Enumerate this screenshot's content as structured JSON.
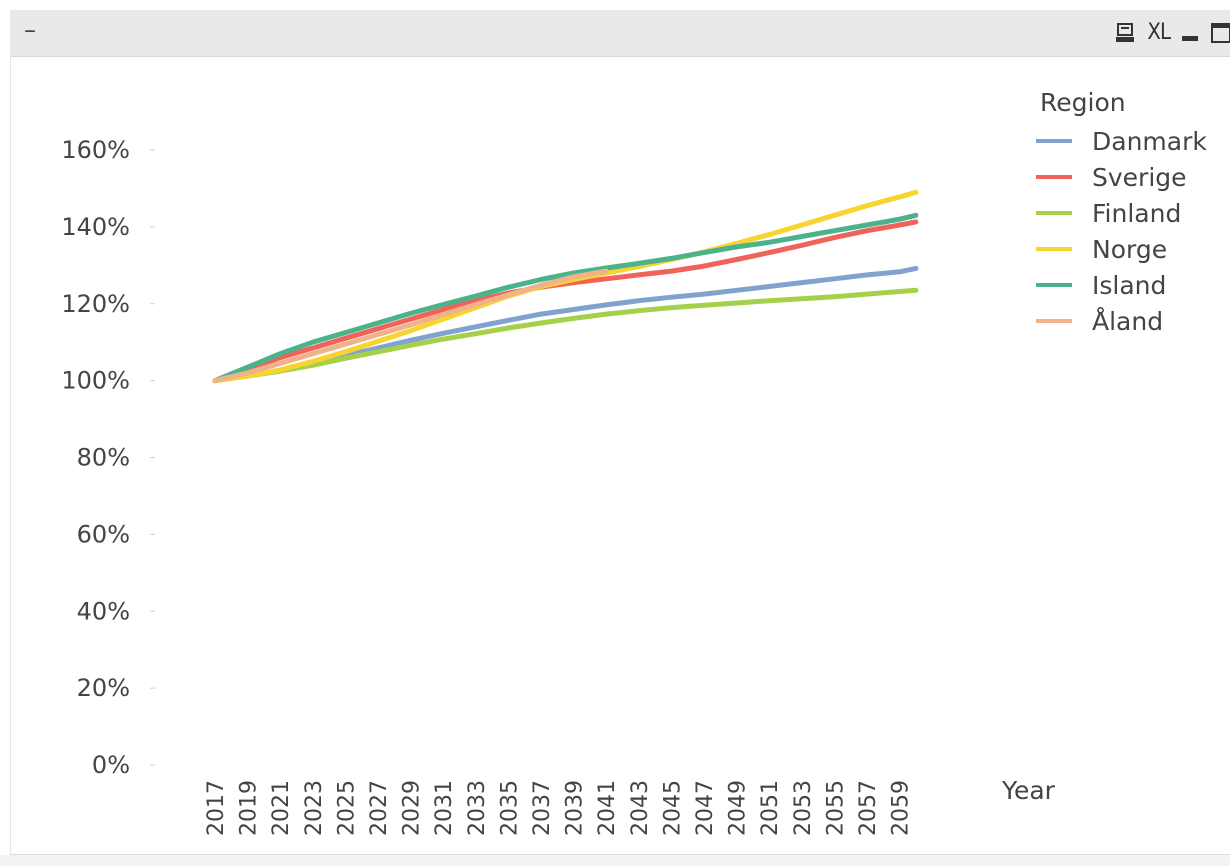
{
  "window": {
    "collapse_label": "–",
    "icons": [
      "print-icon",
      "excel-export-icon",
      "minimize-icon",
      "maximize-icon"
    ],
    "xl_label": "XL"
  },
  "legend": {
    "title": "Region"
  },
  "chart_data": {
    "type": "line",
    "title": "",
    "xlabel": "Year",
    "ylabel": "",
    "ylim": [
      0,
      1.6
    ],
    "yticks": [
      "0%",
      "20%",
      "40%",
      "60%",
      "80%",
      "100%",
      "120%",
      "140%",
      "160%"
    ],
    "x_tick_labels": [
      "2017",
      "2019",
      "2021",
      "2023",
      "2025",
      "2027",
      "2029",
      "2031",
      "2033",
      "2035",
      "2037",
      "2039",
      "2041",
      "2043",
      "2045",
      "2047",
      "2049",
      "2051",
      "2053",
      "2055",
      "2057",
      "2059"
    ],
    "x": [
      2017,
      2019,
      2021,
      2023,
      2025,
      2027,
      2029,
      2031,
      2033,
      2035,
      2037,
      2039,
      2041,
      2043,
      2045,
      2047,
      2049,
      2051,
      2053,
      2055,
      2057,
      2059,
      2060
    ],
    "grid": false,
    "legend_position": "top-right",
    "series": [
      {
        "name": "Danmark",
        "color": "#7fa3cc",
        "values": [
          1.0,
          1.012,
          1.025,
          1.045,
          1.065,
          1.085,
          1.105,
          1.123,
          1.14,
          1.157,
          1.173,
          1.185,
          1.197,
          1.208,
          1.217,
          1.225,
          1.235,
          1.245,
          1.255,
          1.265,
          1.275,
          1.283,
          1.292
        ]
      },
      {
        "name": "Sverige",
        "color": "#f0625a",
        "values": [
          1.0,
          1.03,
          1.06,
          1.085,
          1.11,
          1.135,
          1.16,
          1.185,
          1.208,
          1.228,
          1.243,
          1.255,
          1.265,
          1.275,
          1.285,
          1.298,
          1.315,
          1.333,
          1.352,
          1.372,
          1.39,
          1.405,
          1.413
        ]
      },
      {
        "name": "Finland",
        "color": "#a4d04a",
        "values": [
          1.0,
          1.012,
          1.025,
          1.04,
          1.058,
          1.075,
          1.092,
          1.108,
          1.122,
          1.137,
          1.15,
          1.162,
          1.173,
          1.182,
          1.19,
          1.196,
          1.202,
          1.208,
          1.213,
          1.218,
          1.225,
          1.232,
          1.235
        ]
      },
      {
        "name": "Norge",
        "color": "#f8d42e",
        "values": [
          1.0,
          1.012,
          1.028,
          1.05,
          1.075,
          1.102,
          1.13,
          1.16,
          1.19,
          1.22,
          1.245,
          1.263,
          1.28,
          1.297,
          1.315,
          1.335,
          1.357,
          1.38,
          1.405,
          1.43,
          1.455,
          1.478,
          1.49
        ]
      },
      {
        "name": "Island",
        "color": "#4bb38a",
        "values": [
          1.0,
          1.035,
          1.07,
          1.1,
          1.125,
          1.15,
          1.175,
          1.198,
          1.22,
          1.243,
          1.263,
          1.28,
          1.293,
          1.305,
          1.318,
          1.333,
          1.348,
          1.36,
          1.375,
          1.39,
          1.405,
          1.42,
          1.43
        ]
      },
      {
        "name": "Åland",
        "color": "#f0b28a",
        "values": [
          1.0,
          1.02,
          1.045,
          1.07,
          1.095,
          1.12,
          1.145,
          1.172,
          1.198,
          1.223,
          1.248,
          1.27,
          1.285,
          null,
          null,
          null,
          null,
          null,
          null,
          null,
          null,
          null,
          null
        ]
      }
    ]
  }
}
